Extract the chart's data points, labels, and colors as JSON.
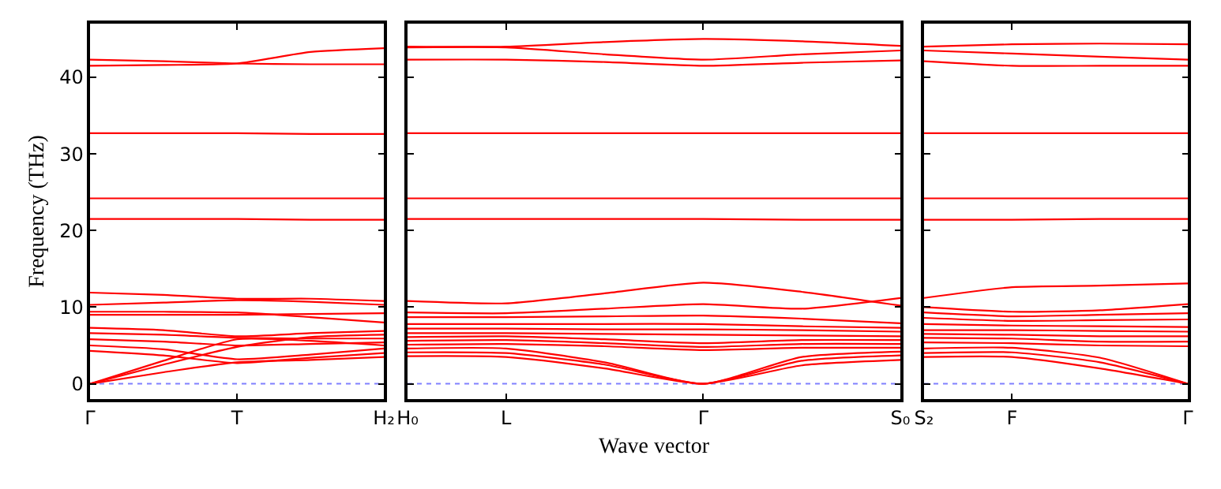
{
  "chart_data": [
    {
      "type": "line",
      "ylabel": "Frequency (THz)",
      "categories": [
        "Γ",
        null,
        "T",
        null,
        "H₂"
      ],
      "ylim": [
        -2,
        47
      ],
      "yticks": [
        0,
        10,
        20,
        30,
        40
      ],
      "marker": "none",
      "line_style": "solid",
      "grid": false,
      "ref_lines": [
        {
          "axis": "y",
          "value": 0,
          "color": "#8080ff",
          "line_style": "dotted"
        }
      ],
      "series": [
        {
          "color": "#ff0000",
          "values": [
            42.3,
            42.1,
            41.8,
            41.7,
            41.7
          ]
        },
        {
          "color": "#ff0000",
          "values": [
            41.5,
            41.6,
            41.8,
            43.3,
            43.8
          ]
        },
        {
          "color": "#ff0000",
          "values": [
            32.7,
            32.7,
            32.7,
            32.6,
            32.6
          ]
        },
        {
          "color": "#ff0000",
          "values": [
            24.2,
            24.2,
            24.2,
            24.2,
            24.2
          ]
        },
        {
          "color": "#ff0000",
          "values": [
            21.5,
            21.5,
            21.5,
            21.4,
            21.4
          ]
        },
        {
          "color": "#ff0000",
          "values": [
            11.9,
            11.6,
            11.1,
            11.1,
            10.8
          ]
        },
        {
          "color": "#ff0000",
          "values": [
            10.3,
            10.6,
            10.9,
            10.7,
            10.3
          ]
        },
        {
          "color": "#ff0000",
          "values": [
            9.4,
            9.4,
            9.3,
            8.7,
            8.0
          ]
        },
        {
          "color": "#ff0000",
          "values": [
            9.0,
            9.0,
            9.0,
            9.1,
            9.2
          ]
        },
        {
          "color": "#ff0000",
          "values": [
            7.3,
            7.0,
            6.2,
            6.6,
            6.9
          ]
        },
        {
          "color": "#ff0000",
          "values": [
            6.6,
            6.4,
            6.0,
            5.9,
            5.9
          ]
        },
        {
          "color": "#ff0000",
          "values": [
            5.8,
            5.5,
            5.0,
            5.2,
            5.4
          ]
        },
        {
          "color": "#ff0000",
          "values": [
            5.0,
            4.5,
            3.2,
            3.8,
            4.6
          ]
        },
        {
          "color": "#ff0000",
          "values": [
            4.3,
            3.7,
            2.7,
            3.4,
            4.0
          ]
        },
        {
          "color": "#ff0000",
          "values": [
            0,
            3.0,
            5.8,
            5.6,
            5.0
          ]
        },
        {
          "color": "#ff0000",
          "values": [
            0,
            1.5,
            2.8,
            3.1,
            3.5
          ]
        },
        {
          "color": "#ff0000",
          "values": [
            0,
            2.5,
            4.8,
            6.1,
            6.4
          ]
        }
      ]
    },
    {
      "type": "line",
      "xlabel": "Wave vector",
      "categories": [
        "H₀",
        "L",
        null,
        "Γ",
        null,
        "S₀"
      ],
      "ylim": [
        -2,
        47
      ],
      "yticks": [
        0,
        10,
        20,
        30,
        40
      ],
      "tick_labels": "x",
      "marker": "none",
      "line_style": "solid",
      "grid": false,
      "ref_lines": [
        {
          "axis": "y",
          "value": 0,
          "color": "#8080ff",
          "line_style": "dotted"
        }
      ],
      "series": [
        {
          "color": "#ff0000",
          "values": [
            44.0,
            44.0,
            44.6,
            45.0,
            44.7,
            44.1
          ]
        },
        {
          "color": "#ff0000",
          "values": [
            43.9,
            43.9,
            43.0,
            42.3,
            43.0,
            43.5
          ]
        },
        {
          "color": "#ff0000",
          "values": [
            42.3,
            42.3,
            42.0,
            41.5,
            41.9,
            42.2
          ]
        },
        {
          "color": "#ff0000",
          "values": [
            32.7,
            32.7,
            32.7,
            32.7,
            32.7,
            32.7
          ]
        },
        {
          "color": "#ff0000",
          "values": [
            24.2,
            24.2,
            24.2,
            24.2,
            24.2,
            24.2
          ]
        },
        {
          "color": "#ff0000",
          "values": [
            21.5,
            21.5,
            21.5,
            21.5,
            21.4,
            21.4
          ]
        },
        {
          "color": "#ff0000",
          "values": [
            10.8,
            10.5,
            11.8,
            13.2,
            12.0,
            10.2
          ]
        },
        {
          "color": "#ff0000",
          "values": [
            9.3,
            9.2,
            9.8,
            10.4,
            9.8,
            11.2
          ]
        },
        {
          "color": "#ff0000",
          "values": [
            8.7,
            8.7,
            8.8,
            8.9,
            8.5,
            7.9
          ]
        },
        {
          "color": "#ff0000",
          "values": [
            7.8,
            7.8,
            7.8,
            7.8,
            7.5,
            7.3
          ]
        },
        {
          "color": "#ff0000",
          "values": [
            7.2,
            7.2,
            7.1,
            7.1,
            7.0,
            6.8
          ]
        },
        {
          "color": "#ff0000",
          "values": [
            6.6,
            6.6,
            6.5,
            6.4,
            6.3,
            6.2
          ]
        },
        {
          "color": "#ff0000",
          "values": [
            6.1,
            6.2,
            5.8,
            5.3,
            5.7,
            5.7
          ]
        },
        {
          "color": "#ff0000",
          "values": [
            5.6,
            5.7,
            5.3,
            4.8,
            5.2,
            5.2
          ]
        },
        {
          "color": "#ff0000",
          "values": [
            5.1,
            5.2,
            4.9,
            4.4,
            4.7,
            4.7
          ]
        },
        {
          "color": "#ff0000",
          "values": [
            4.6,
            4.6,
            2.8,
            0,
            3.5,
            4.2
          ]
        },
        {
          "color": "#ff0000",
          "values": [
            4.1,
            4.0,
            2.5,
            0,
            3.0,
            3.7
          ]
        },
        {
          "color": "#ff0000",
          "values": [
            3.6,
            3.5,
            2.0,
            0,
            2.4,
            3.1
          ]
        }
      ]
    },
    {
      "type": "line",
      "categories": [
        "S₂",
        "F",
        null,
        "Γ"
      ],
      "ylim": [
        -2,
        47
      ],
      "yticks": [
        0,
        10,
        20,
        30,
        40
      ],
      "tick_labels": "x",
      "marker": "none",
      "line_style": "solid",
      "grid": false,
      "ref_lines": [
        {
          "axis": "y",
          "value": 0,
          "color": "#8080ff",
          "line_style": "dotted"
        }
      ],
      "series": [
        {
          "color": "#ff0000",
          "values": [
            44.0,
            44.3,
            44.4,
            44.3
          ]
        },
        {
          "color": "#ff0000",
          "values": [
            43.5,
            43.1,
            42.7,
            42.3
          ]
        },
        {
          "color": "#ff0000",
          "values": [
            42.1,
            41.5,
            41.5,
            41.5
          ]
        },
        {
          "color": "#ff0000",
          "values": [
            32.7,
            32.7,
            32.7,
            32.7
          ]
        },
        {
          "color": "#ff0000",
          "values": [
            24.2,
            24.2,
            24.2,
            24.2
          ]
        },
        {
          "color": "#ff0000",
          "values": [
            21.4,
            21.4,
            21.5,
            21.5
          ]
        },
        {
          "color": "#ff0000",
          "values": [
            11.2,
            12.6,
            12.8,
            13.1
          ]
        },
        {
          "color": "#ff0000",
          "values": [
            10.0,
            9.4,
            9.6,
            10.4
          ]
        },
        {
          "color": "#ff0000",
          "values": [
            9.3,
            8.8,
            9.0,
            9.2
          ]
        },
        {
          "color": "#ff0000",
          "values": [
            8.6,
            8.2,
            8.3,
            8.4
          ]
        },
        {
          "color": "#ff0000",
          "values": [
            7.8,
            7.6,
            7.5,
            7.4
          ]
        },
        {
          "color": "#ff0000",
          "values": [
            7.0,
            7.0,
            6.9,
            6.8
          ]
        },
        {
          "color": "#ff0000",
          "values": [
            6.5,
            6.4,
            6.2,
            6.2
          ]
        },
        {
          "color": "#ff0000",
          "values": [
            6.0,
            5.9,
            5.5,
            5.5
          ]
        },
        {
          "color": "#ff0000",
          "values": [
            5.4,
            5.3,
            5.0,
            4.9
          ]
        },
        {
          "color": "#ff0000",
          "values": [
            4.6,
            4.7,
            3.4,
            0
          ]
        },
        {
          "color": "#ff0000",
          "values": [
            4.0,
            4.1,
            2.8,
            0
          ]
        },
        {
          "color": "#ff0000",
          "values": [
            3.5,
            3.5,
            2.0,
            0
          ]
        }
      ]
    }
  ]
}
